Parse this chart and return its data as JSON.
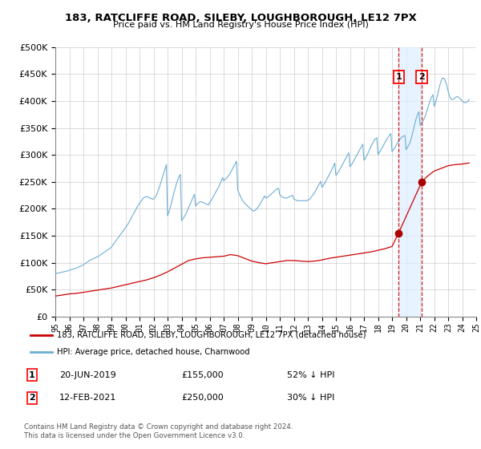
{
  "title": "183, RATCLIFFE ROAD, SILEBY, LOUGHBOROUGH, LE12 7PX",
  "subtitle": "Price paid vs. HM Land Registry's House Price Index (HPI)",
  "legend_line1": "183, RATCLIFFE ROAD, SILEBY, LOUGHBOROUGH, LE12 7PX (detached house)",
  "legend_line2": "HPI: Average price, detached house, Charnwood",
  "footnote1": "Contains HM Land Registry data © Crown copyright and database right 2024.",
  "footnote2": "This data is licensed under the Open Government Licence v3.0.",
  "annotation1_date": "20-JUN-2019",
  "annotation1_price": "£155,000",
  "annotation1_hpi": "52% ↓ HPI",
  "annotation2_date": "12-FEB-2021",
  "annotation2_price": "£250,000",
  "annotation2_hpi": "30% ↓ HPI",
  "sale1_x": 2019.47,
  "sale1_y": 155000,
  "sale2_x": 2021.12,
  "sale2_y": 250000,
  "hpi_color": "#6baed6",
  "price_color": "#cc0000",
  "sale_marker_color": "#aa0000",
  "dashed_line_color": "#cc0000",
  "shade_color": "#ddeeff",
  "ylim": [
    0,
    500000
  ],
  "xlim": [
    1995,
    2025
  ],
  "yticks": [
    0,
    50000,
    100000,
    150000,
    200000,
    250000,
    300000,
    350000,
    400000,
    450000,
    500000
  ],
  "hpi_x": [
    1995.0,
    1995.083,
    1995.167,
    1995.25,
    1995.333,
    1995.417,
    1995.5,
    1995.583,
    1995.667,
    1995.75,
    1995.833,
    1995.917,
    1996.0,
    1996.083,
    1996.167,
    1996.25,
    1996.333,
    1996.417,
    1996.5,
    1996.583,
    1996.667,
    1996.75,
    1996.833,
    1996.917,
    1997.0,
    1997.083,
    1997.167,
    1997.25,
    1997.333,
    1997.417,
    1997.5,
    1997.583,
    1997.667,
    1997.75,
    1997.833,
    1997.917,
    1998.0,
    1998.083,
    1998.167,
    1998.25,
    1998.333,
    1998.417,
    1998.5,
    1998.583,
    1998.667,
    1998.75,
    1998.833,
    1998.917,
    1999.0,
    1999.083,
    1999.167,
    1999.25,
    1999.333,
    1999.417,
    1999.5,
    1999.583,
    1999.667,
    1999.75,
    1999.833,
    1999.917,
    2000.0,
    2000.083,
    2000.167,
    2000.25,
    2000.333,
    2000.417,
    2000.5,
    2000.583,
    2000.667,
    2000.75,
    2000.833,
    2000.917,
    2001.0,
    2001.083,
    2001.167,
    2001.25,
    2001.333,
    2001.417,
    2001.5,
    2001.583,
    2001.667,
    2001.75,
    2001.833,
    2001.917,
    2002.0,
    2002.083,
    2002.167,
    2002.25,
    2002.333,
    2002.417,
    2002.5,
    2002.583,
    2002.667,
    2002.75,
    2002.833,
    2002.917,
    2003.0,
    2003.083,
    2003.167,
    2003.25,
    2003.333,
    2003.417,
    2003.5,
    2003.583,
    2003.667,
    2003.75,
    2003.833,
    2003.917,
    2004.0,
    2004.083,
    2004.167,
    2004.25,
    2004.333,
    2004.417,
    2004.5,
    2004.583,
    2004.667,
    2004.75,
    2004.833,
    2004.917,
    2005.0,
    2005.083,
    2005.167,
    2005.25,
    2005.333,
    2005.417,
    2005.5,
    2005.583,
    2005.667,
    2005.75,
    2005.833,
    2005.917,
    2006.0,
    2006.083,
    2006.167,
    2006.25,
    2006.333,
    2006.417,
    2006.5,
    2006.583,
    2006.667,
    2006.75,
    2006.833,
    2006.917,
    2007.0,
    2007.083,
    2007.167,
    2007.25,
    2007.333,
    2007.417,
    2007.5,
    2007.583,
    2007.667,
    2007.75,
    2007.833,
    2007.917,
    2008.0,
    2008.083,
    2008.167,
    2008.25,
    2008.333,
    2008.417,
    2008.5,
    2008.583,
    2008.667,
    2008.75,
    2008.833,
    2008.917,
    2009.0,
    2009.083,
    2009.167,
    2009.25,
    2009.333,
    2009.417,
    2009.5,
    2009.583,
    2009.667,
    2009.75,
    2009.833,
    2009.917,
    2010.0,
    2010.083,
    2010.167,
    2010.25,
    2010.333,
    2010.417,
    2010.5,
    2010.583,
    2010.667,
    2010.75,
    2010.833,
    2010.917,
    2011.0,
    2011.083,
    2011.167,
    2011.25,
    2011.333,
    2011.417,
    2011.5,
    2011.583,
    2011.667,
    2011.75,
    2011.833,
    2011.917,
    2012.0,
    2012.083,
    2012.167,
    2012.25,
    2012.333,
    2012.417,
    2012.5,
    2012.583,
    2012.667,
    2012.75,
    2012.833,
    2012.917,
    2013.0,
    2013.083,
    2013.167,
    2013.25,
    2013.333,
    2013.417,
    2013.5,
    2013.583,
    2013.667,
    2013.75,
    2013.833,
    2013.917,
    2014.0,
    2014.083,
    2014.167,
    2014.25,
    2014.333,
    2014.417,
    2014.5,
    2014.583,
    2014.667,
    2014.75,
    2014.833,
    2014.917,
    2015.0,
    2015.083,
    2015.167,
    2015.25,
    2015.333,
    2015.417,
    2015.5,
    2015.583,
    2015.667,
    2015.75,
    2015.833,
    2015.917,
    2016.0,
    2016.083,
    2016.167,
    2016.25,
    2016.333,
    2016.417,
    2016.5,
    2016.583,
    2016.667,
    2016.75,
    2016.833,
    2016.917,
    2017.0,
    2017.083,
    2017.167,
    2017.25,
    2017.333,
    2017.417,
    2017.5,
    2017.583,
    2017.667,
    2017.75,
    2017.833,
    2017.917,
    2018.0,
    2018.083,
    2018.167,
    2018.25,
    2018.333,
    2018.417,
    2018.5,
    2018.583,
    2018.667,
    2018.75,
    2018.833,
    2018.917,
    2019.0,
    2019.083,
    2019.167,
    2019.25,
    2019.333,
    2019.417,
    2019.5,
    2019.583,
    2019.667,
    2019.75,
    2019.833,
    2019.917,
    2020.0,
    2020.083,
    2020.167,
    2020.25,
    2020.333,
    2020.417,
    2020.5,
    2020.583,
    2020.667,
    2020.75,
    2020.833,
    2020.917,
    2021.0,
    2021.083,
    2021.167,
    2021.25,
    2021.333,
    2021.417,
    2021.5,
    2021.583,
    2021.667,
    2021.75,
    2021.833,
    2021.917,
    2022.0,
    2022.083,
    2022.167,
    2022.25,
    2022.333,
    2022.417,
    2022.5,
    2022.583,
    2022.667,
    2022.75,
    2022.833,
    2022.917,
    2023.0,
    2023.083,
    2023.167,
    2023.25,
    2023.333,
    2023.417,
    2023.5,
    2023.583,
    2023.667,
    2023.75,
    2023.833,
    2023.917,
    2024.0,
    2024.083,
    2024.167,
    2024.25,
    2024.333,
    2024.417,
    2024.5
  ],
  "hpi_y": [
    79000,
    80000,
    80500,
    81000,
    81500,
    82000,
    82500,
    83000,
    83500,
    84000,
    84500,
    85000,
    86000,
    87000,
    87500,
    88000,
    88500,
    89000,
    90000,
    91000,
    92000,
    93000,
    94000,
    95000,
    96000,
    97500,
    99000,
    100500,
    102000,
    103500,
    105000,
    106000,
    107000,
    108000,
    109000,
    110000,
    111000,
    112000,
    113500,
    115000,
    116500,
    118000,
    119500,
    121000,
    122500,
    124000,
    125500,
    127000,
    129000,
    132000,
    135000,
    138000,
    141000,
    144000,
    147000,
    150000,
    153000,
    156000,
    159000,
    162000,
    165000,
    168000,
    171000,
    175000,
    179000,
    183000,
    187000,
    191000,
    195000,
    199000,
    203000,
    207000,
    210000,
    213000,
    216000,
    219000,
    221000,
    222000,
    222500,
    222000,
    221000,
    220000,
    219000,
    218000,
    218000,
    220000,
    223000,
    228000,
    234000,
    240000,
    247000,
    254000,
    261000,
    268000,
    275000,
    282000,
    187000,
    193000,
    200000,
    208000,
    216000,
    225000,
    234000,
    242000,
    249000,
    255000,
    260000,
    264000,
    178000,
    181000,
    184000,
    188000,
    192000,
    197000,
    202000,
    207000,
    212000,
    217000,
    222000,
    227000,
    205000,
    208000,
    210000,
    212000,
    213000,
    213000,
    212000,
    211000,
    210000,
    209000,
    208000,
    207000,
    212000,
    215000,
    218000,
    222000,
    226000,
    230000,
    234000,
    238000,
    242000,
    247000,
    252000,
    258000,
    252000,
    254000,
    256000,
    258000,
    261000,
    264000,
    268000,
    272000,
    276000,
    280000,
    284000,
    288000,
    235000,
    230000,
    225000,
    220000,
    216000,
    213000,
    210000,
    208000,
    206000,
    204000,
    202000,
    200000,
    198000,
    196000,
    196000,
    197000,
    199000,
    202000,
    205000,
    208000,
    212000,
    216000,
    220000,
    224000,
    220000,
    221000,
    222000,
    224000,
    226000,
    228000,
    230000,
    232000,
    234000,
    236000,
    237000,
    238000,
    226000,
    224000,
    222000,
    221000,
    220000,
    220000,
    220000,
    221000,
    222000,
    223000,
    224000,
    225000,
    218000,
    217000,
    216000,
    215000,
    215000,
    215000,
    215000,
    215000,
    215000,
    215000,
    215000,
    215000,
    216000,
    217000,
    219000,
    222000,
    225000,
    228000,
    231000,
    235000,
    239000,
    243000,
    247000,
    251000,
    240000,
    243000,
    246000,
    250000,
    254000,
    258000,
    262000,
    266000,
    270000,
    275000,
    280000,
    285000,
    262000,
    265000,
    268000,
    272000,
    276000,
    280000,
    284000,
    288000,
    292000,
    296000,
    300000,
    304000,
    278000,
    281000,
    284000,
    288000,
    292000,
    296000,
    300000,
    304000,
    308000,
    312000,
    316000,
    320000,
    290000,
    293000,
    297000,
    301000,
    306000,
    311000,
    316000,
    320000,
    324000,
    328000,
    330000,
    332000,
    301000,
    304000,
    307000,
    311000,
    315000,
    319000,
    323000,
    327000,
    331000,
    334000,
    337000,
    340000,
    306000,
    309000,
    312000,
    316000,
    320000,
    324000,
    327000,
    330000,
    332000,
    334000,
    335000,
    336000,
    310000,
    313000,
    317000,
    321000,
    327000,
    335000,
    344000,
    353000,
    362000,
    370000,
    376000,
    380000,
    355000,
    358000,
    361000,
    365000,
    370000,
    376000,
    383000,
    390000,
    397000,
    403000,
    408000,
    412000,
    390000,
    396000,
    403000,
    412000,
    421000,
    430000,
    437000,
    442000,
    443000,
    440000,
    435000,
    428000,
    418000,
    410000,
    405000,
    403000,
    403000,
    404000,
    406000,
    408000,
    408000,
    407000,
    405000,
    403000,
    400000,
    398000,
    397000,
    397000,
    398000,
    400000,
    403000
  ],
  "price_x": [
    1995.0,
    1995.5,
    1996.0,
    1996.5,
    1997.0,
    1997.5,
    1998.0,
    1998.5,
    1999.0,
    1999.5,
    2000.0,
    2000.5,
    2001.0,
    2001.5,
    2002.0,
    2002.5,
    2003.0,
    2003.5,
    2004.0,
    2004.5,
    2005.0,
    2005.5,
    2006.0,
    2006.5,
    2007.0,
    2007.5,
    2008.0,
    2008.5,
    2009.0,
    2009.5,
    2010.0,
    2010.5,
    2011.0,
    2011.5,
    2012.0,
    2012.5,
    2013.0,
    2013.5,
    2014.0,
    2014.5,
    2015.0,
    2015.5,
    2016.0,
    2016.5,
    2017.0,
    2017.5,
    2018.0,
    2018.5,
    2019.0,
    2019.47,
    2021.12,
    2021.5,
    2022.0,
    2022.5,
    2023.0,
    2023.5,
    2024.0,
    2024.5
  ],
  "price_y": [
    38000,
    40000,
    42000,
    43000,
    45000,
    47000,
    49000,
    51000,
    53000,
    56000,
    59000,
    62000,
    65000,
    68000,
    72000,
    77000,
    83000,
    90000,
    97000,
    104000,
    107000,
    109000,
    110000,
    111000,
    112000,
    115000,
    113000,
    108000,
    103000,
    100000,
    98000,
    100000,
    102000,
    104000,
    104000,
    103000,
    102000,
    103000,
    105000,
    108000,
    110000,
    112000,
    114000,
    116000,
    118000,
    120000,
    123000,
    126000,
    130000,
    155000,
    250000,
    260000,
    270000,
    275000,
    280000,
    282000,
    283000,
    285000
  ]
}
